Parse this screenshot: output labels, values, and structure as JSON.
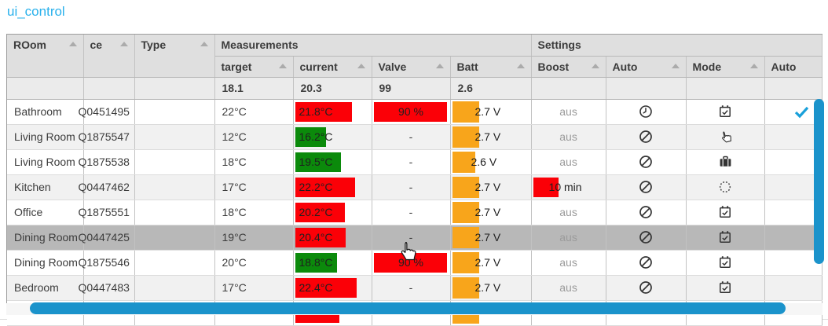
{
  "title": "ui_control",
  "colors": {
    "red": "#fb0007",
    "green": "#0b8a0b",
    "orange": "#f8a51b",
    "scrollbar_blue": "#1b93cb",
    "check_blue": "#19a0da",
    "title_blue": "#29b1ec",
    "selected_row": "#b8b8b8"
  },
  "table": {
    "widths": [
      97,
      65,
      102,
      100,
      100,
      100,
      103,
      95,
      102,
      100,
      73
    ],
    "header_row1": [
      {
        "label": "ROom",
        "sort": true,
        "rowspan": 2
      },
      {
        "label": "ce",
        "sort": true,
        "rowspan": 2
      },
      {
        "label": "Type",
        "sort": true,
        "rowspan": 2
      },
      {
        "label": "Measurements",
        "colspan": 4
      },
      {
        "label": "Settings",
        "colspan": 4
      }
    ],
    "header_row2": [
      {
        "label": "target",
        "sort": true
      },
      {
        "label": "current",
        "sort": true
      },
      {
        "label": "Valve",
        "sort": true
      },
      {
        "label": "Batt",
        "sort": true
      },
      {
        "label": "Boost",
        "sort": true
      },
      {
        "label": "Auto",
        "sort": true
      },
      {
        "label": "Mode",
        "sort": true
      },
      {
        "label": "Auto",
        "sort": false
      }
    ],
    "filter_values": [
      "",
      "",
      "",
      "18.1",
      "20.3",
      "99",
      "2.6",
      "",
      "",
      "",
      ""
    ],
    "rows": [
      {
        "room": "Bathroom",
        "device": "Q0451495",
        "type": "",
        "target": "22°C",
        "current": {
          "text": "21.8°C",
          "color": "red",
          "pct": 75
        },
        "valve": {
          "text": "90 %",
          "bar": true
        },
        "batt": {
          "text": "2.7 V",
          "pct": 35
        },
        "boost": {
          "text": "aus",
          "muted": true
        },
        "auto": "clock",
        "mode": "calendar-check",
        "auto2": "check",
        "selected": false
      },
      {
        "room": "Living Room",
        "device": "Q1875547",
        "type": "",
        "target": "12°C",
        "current": {
          "text": "16.2°C",
          "color": "green",
          "pct": 41
        },
        "valve": {
          "text": "-"
        },
        "batt": {
          "text": "2.7 V",
          "pct": 35
        },
        "boost": {
          "text": "aus",
          "muted": true
        },
        "auto": "blocked",
        "mode": "hand",
        "auto2": "",
        "selected": false
      },
      {
        "room": "Living Room",
        "device": "Q1875538",
        "type": "",
        "target": "18°C",
        "current": {
          "text": "19.5°C",
          "color": "green",
          "pct": 60
        },
        "valve": {
          "text": "-"
        },
        "batt": {
          "text": "2.6 V",
          "pct": 30
        },
        "boost": {
          "text": "aus",
          "muted": true
        },
        "auto": "blocked",
        "mode": "briefcase",
        "auto2": "",
        "selected": false
      },
      {
        "room": "Kitchen",
        "device": "Q0447462",
        "type": "",
        "target": "17°C",
        "current": {
          "text": "22.2°C",
          "color": "red",
          "pct": 79
        },
        "valve": {
          "text": "-"
        },
        "batt": {
          "text": "2.7 V",
          "pct": 35
        },
        "boost": {
          "text": "10 min",
          "bar": true
        },
        "auto": "blocked",
        "mode": "dotted-circle",
        "auto2": "",
        "selected": false
      },
      {
        "room": "Office",
        "device": "Q1875551",
        "type": "",
        "target": "18°C",
        "current": {
          "text": "20.2°C",
          "color": "red",
          "pct": 66
        },
        "valve": {
          "text": "-"
        },
        "batt": {
          "text": "2.7 V",
          "pct": 35
        },
        "boost": {
          "text": "aus",
          "muted": true
        },
        "auto": "blocked",
        "mode": "calendar-check",
        "auto2": "",
        "selected": false
      },
      {
        "room": "Dining Room",
        "device": "Q0447425",
        "type": "",
        "target": "19°C",
        "current": {
          "text": "20.4°C",
          "color": "red",
          "pct": 67
        },
        "valve": {
          "text": "-"
        },
        "batt": {
          "text": "2.7 V",
          "pct": 35
        },
        "boost": {
          "text": "aus",
          "muted": true
        },
        "auto": "blocked",
        "mode": "calendar-check",
        "auto2": "",
        "selected": true
      },
      {
        "room": "Dining Room",
        "device": "Q1875546",
        "type": "",
        "target": "20°C",
        "current": {
          "text": "18.8°C",
          "color": "green",
          "pct": 55
        },
        "valve": {
          "text": "90 %",
          "bar": true,
          "cursor": true
        },
        "batt": {
          "text": "2.7 V",
          "pct": 35
        },
        "boost": {
          "text": "aus",
          "muted": true
        },
        "auto": "blocked",
        "mode": "calendar-check",
        "auto2": "",
        "selected": false
      },
      {
        "room": "Bedroom",
        "device": "Q0447483",
        "type": "",
        "target": "17°C",
        "current": {
          "text": "22.4°C",
          "color": "red",
          "pct": 81
        },
        "valve": {
          "text": "-"
        },
        "batt": {
          "text": "2.7 V",
          "pct": 35
        },
        "boost": {
          "text": "aus",
          "muted": true
        },
        "auto": "blocked",
        "mode": "calendar-check",
        "auto2": "",
        "selected": false
      },
      {
        "room": "",
        "device": "",
        "type": "",
        "target": "",
        "current": {
          "text": "",
          "color": "red",
          "pct": 58
        },
        "valve": {
          "text": ""
        },
        "batt": {
          "text": "",
          "pct": 35
        },
        "boost": {
          "text": ""
        },
        "auto": "",
        "mode": "",
        "auto2": "",
        "selected": false,
        "partial": true
      }
    ]
  }
}
